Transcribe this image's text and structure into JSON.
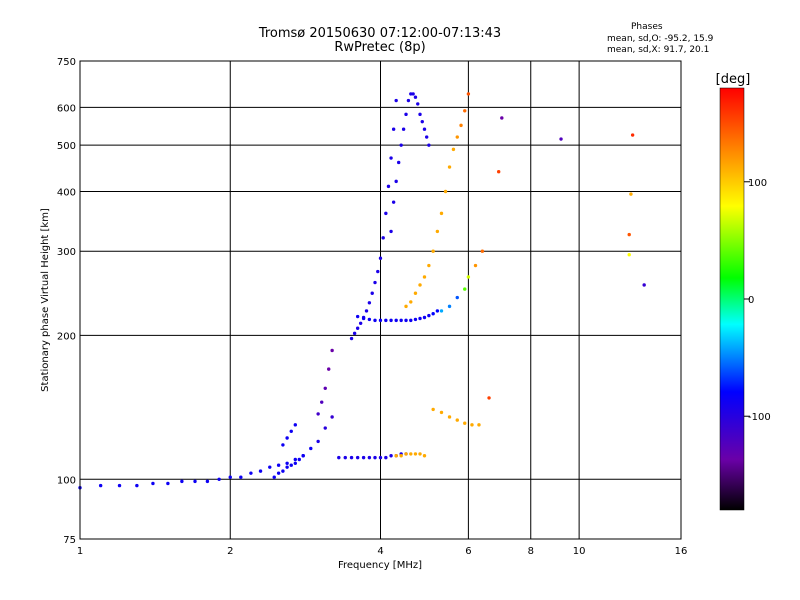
{
  "chart_data": {
    "type": "scatter",
    "title": "Tromsø 20150630 07:12:00-07:13:43",
    "subtitle": "RwPretec (8p)",
    "xlabel": "Frequency [MHz]",
    "ylabel": "Stationary phase Virtual Height [km]",
    "x_scale": "log",
    "y_scale": "log",
    "xlim": [
      1,
      16
    ],
    "ylim": [
      75,
      750
    ],
    "x_ticks": [
      1,
      2,
      4,
      6,
      8,
      10,
      16
    ],
    "x_tick_labels": [
      "1",
      "2",
      "4",
      "6",
      "8",
      "10",
      "16"
    ],
    "y_ticks": [
      75,
      100,
      200,
      300,
      400,
      500,
      600,
      750
    ],
    "y_tick_labels": [
      "75",
      "100",
      "200",
      "300",
      "400",
      "500",
      "600",
      "750"
    ],
    "grid": true,
    "annotation": {
      "title": "Phases",
      "o_mode": "mean, sd,O: -95.2, 15.9",
      "x_mode": "mean, sd,X:  91.7, 20.1"
    },
    "colorbar": {
      "label": "[deg]",
      "range": [
        -180,
        180
      ],
      "ticks": [
        100,
        0,
        -100
      ],
      "tick_labels": [
        "100",
        "0",
        "-100"
      ]
    },
    "series": [
      {
        "x": [
          1.0,
          1.1,
          1.2,
          1.3,
          1.4,
          1.5,
          1.6,
          1.7,
          1.8,
          1.9,
          2.0,
          2.1,
          2.2,
          2.3,
          2.4,
          2.5,
          2.6,
          2.7,
          2.8,
          2.9,
          3.0,
          3.1,
          3.2
        ],
        "y": [
          96,
          97,
          97,
          97,
          98,
          98,
          99,
          99,
          99,
          100,
          101,
          101,
          103,
          104,
          106,
          107,
          108,
          110,
          112,
          116,
          120,
          128,
          135
        ],
        "phase": [
          -105,
          -105,
          -105,
          -105,
          -105,
          -105,
          -105,
          -105,
          -105,
          -105,
          -105,
          -105,
          -105,
          -105,
          -105,
          -105,
          -105,
          -105,
          -105,
          -105,
          -110,
          -115,
          -120
        ]
      },
      {
        "x": [
          2.45,
          2.5,
          2.55,
          2.6,
          2.65,
          2.7,
          2.75,
          2.8
        ],
        "y": [
          101,
          103,
          104,
          106,
          107,
          108,
          110,
          112
        ],
        "phase": [
          -105,
          -105,
          -105,
          -105,
          -105,
          -105,
          -105,
          -105
        ]
      },
      {
        "x": [
          2.55,
          2.6,
          2.65,
          2.7,
          3.0,
          3.05,
          3.1,
          3.15,
          3.2
        ],
        "y": [
          118,
          122,
          126,
          130,
          137,
          145,
          155,
          170,
          186
        ],
        "phase": [
          -105,
          -105,
          -105,
          -105,
          -125,
          -130,
          -135,
          -140,
          -140
        ]
      },
      {
        "x": [
          3.3,
          3.4,
          3.5,
          3.6,
          3.7,
          3.8,
          3.9,
          4.0,
          4.1,
          4.2,
          4.3,
          4.4,
          4.5
        ],
        "y": [
          111,
          111,
          111,
          111,
          111,
          111,
          111,
          111,
          111,
          112,
          112,
          113,
          113
        ],
        "phase": [
          -110,
          -110,
          -110,
          -110,
          -110,
          -110,
          -110,
          -110,
          -110,
          -110,
          -110,
          -110,
          -110
        ]
      },
      {
        "x": [
          4.3,
          4.4,
          4.5,
          4.6,
          4.7,
          4.8,
          4.9
        ],
        "y": [
          112,
          112,
          113,
          113,
          113,
          113,
          112
        ],
        "phase": [
          100,
          100,
          100,
          100,
          100,
          100,
          100
        ]
      },
      {
        "x": [
          3.5,
          3.55,
          3.6,
          3.65,
          3.7,
          3.75,
          3.8,
          3.85,
          3.9,
          3.95,
          4.0,
          4.05,
          4.1,
          4.15,
          4.2,
          4.25,
          4.3
        ],
        "y": [
          197,
          202,
          207,
          212,
          218,
          225,
          234,
          245,
          258,
          272,
          290,
          320,
          360,
          410,
          470,
          540,
          620
        ],
        "phase": [
          -110,
          -110,
          -110,
          -110,
          -110,
          -110,
          -110,
          -110,
          -110,
          -110,
          -110,
          -110,
          -110,
          -110,
          -110,
          -110,
          -110
        ]
      },
      {
        "x": [
          3.6,
          3.7,
          3.8,
          3.9,
          4.0,
          4.1,
          4.2,
          4.3,
          4.4,
          4.5,
          4.6,
          4.7,
          4.8,
          4.9,
          5.0,
          5.1,
          5.2
        ],
        "y": [
          219,
          217,
          216,
          215,
          215,
          215,
          215,
          215,
          215,
          215,
          215,
          216,
          217,
          218,
          220,
          222,
          225
        ],
        "phase": [
          -105,
          -105,
          -105,
          -105,
          -105,
          -105,
          -105,
          -105,
          -105,
          -105,
          -105,
          -105,
          -105,
          -105,
          -105,
          -100,
          -100
        ]
      },
      {
        "x": [
          4.2,
          4.25,
          4.3,
          4.35,
          4.4,
          4.45,
          4.5,
          4.55,
          4.6,
          4.65,
          4.7,
          4.75,
          4.8,
          4.85,
          4.9,
          4.95,
          5.0
        ],
        "y": [
          330,
          380,
          420,
          460,
          500,
          540,
          580,
          620,
          640,
          640,
          630,
          610,
          580,
          560,
          540,
          520,
          500
        ],
        "phase": [
          -110,
          -110,
          -110,
          -110,
          -110,
          -110,
          -110,
          -110,
          -110,
          -110,
          -110,
          -110,
          -110,
          -110,
          -110,
          -110,
          -110
        ]
      },
      {
        "x": [
          4.5,
          4.6,
          4.7,
          4.8,
          4.9,
          5.0,
          5.1,
          5.2,
          5.3,
          5.4,
          5.5,
          5.6,
          5.7,
          5.8,
          5.9,
          6.0
        ],
        "y": [
          230,
          235,
          245,
          255,
          265,
          280,
          300,
          330,
          360,
          400,
          450,
          490,
          520,
          550,
          590,
          640
        ],
        "phase": [
          100,
          100,
          100,
          100,
          100,
          100,
          100,
          100,
          100,
          100,
          100,
          100,
          110,
          120,
          130,
          140
        ]
      },
      {
        "x": [
          5.1,
          5.3,
          5.5,
          5.7,
          5.9,
          6.1,
          6.3,
          6.6
        ],
        "y": [
          140,
          138,
          135,
          133,
          131,
          130,
          130,
          148
        ],
        "phase": [
          100,
          100,
          100,
          100,
          100,
          100,
          100,
          150
        ]
      },
      {
        "x": [
          5.3,
          5.5,
          5.7,
          5.9,
          6.0,
          6.2,
          6.4
        ],
        "y": [
          225,
          230,
          240,
          250,
          265,
          280,
          300
        ],
        "phase": [
          -60,
          -70,
          -80,
          20,
          50,
          110,
          130
        ]
      },
      {
        "x": [
          7.0,
          9.2,
          12.8,
          12.7,
          12.6,
          13.5,
          12.6,
          6.9
        ],
        "y": [
          570,
          515,
          525,
          395,
          325,
          255,
          295,
          440
        ],
        "phase": [
          -140,
          -130,
          160,
          100,
          140,
          -120,
          60,
          150
        ]
      }
    ]
  }
}
